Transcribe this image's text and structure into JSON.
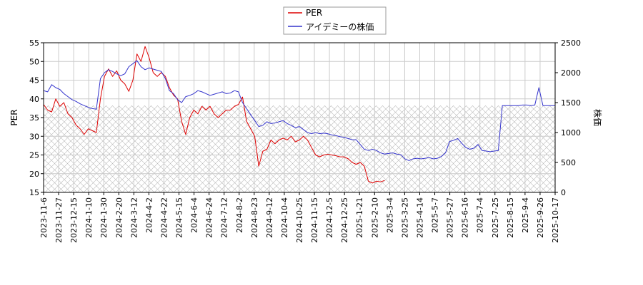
{
  "chart_data": {
    "type": "line",
    "ylabel_left": "PER",
    "ylabel_right": "株価",
    "ylim_left": [
      15,
      55
    ],
    "ylim_right": [
      0,
      2500
    ],
    "yticks_left": [
      "15",
      "20",
      "25",
      "30",
      "35",
      "40",
      "45",
      "50",
      "55"
    ],
    "yticks_right": [
      "0",
      "500",
      "1000",
      "1500",
      "2000",
      "2500"
    ],
    "x_ticks": [
      "2023-11-6",
      "2023-11-27",
      "2023-12-15",
      "2024-1-10",
      "2024-1-30",
      "2024-2-20",
      "2024-3-12",
      "2024-4-2",
      "2024-4-22",
      "2024-5-15",
      "2024-6-4",
      "2024-6-24",
      "2024-7-12",
      "2024-8-2",
      "2024-8-23",
      "2024-9-12",
      "2024-10-4",
      "2024-10-25",
      "2024-11-15",
      "2024-12-5",
      "2024-12-25",
      "2025-1-21",
      "2025-2-10",
      "2025-3-4",
      "2025-3-25",
      "2025-4-14",
      "2025-5-7",
      "2025-5-27",
      "2025-6-16",
      "2025-7-4",
      "2025-7-25",
      "2025-8-15",
      "2025-9-4",
      "2025-9-26",
      "2025-10-17"
    ],
    "grid": true,
    "hatch_band_right": [
      0,
      1450
    ],
    "legend_placement": "top-center",
    "series": [
      {
        "name": "PER",
        "axis": "left",
        "color": "#dd0000",
        "points": [
          [
            0,
            38.5
          ],
          [
            1,
            37
          ],
          [
            2,
            36.5
          ],
          [
            3,
            40
          ],
          [
            4,
            38
          ],
          [
            5,
            39
          ],
          [
            6,
            36
          ],
          [
            7,
            35
          ],
          [
            8,
            33
          ],
          [
            9,
            32
          ],
          [
            10,
            30.5
          ],
          [
            11,
            32
          ],
          [
            12,
            31.5
          ],
          [
            13,
            31
          ],
          [
            14,
            40
          ],
          [
            15,
            46
          ],
          [
            16,
            48
          ],
          [
            17,
            46
          ],
          [
            18,
            47.5
          ],
          [
            19,
            45
          ],
          [
            20,
            44
          ],
          [
            21,
            42
          ],
          [
            22,
            45
          ],
          [
            23,
            52
          ],
          [
            24,
            50
          ],
          [
            25,
            54
          ],
          [
            26,
            51
          ],
          [
            27,
            47
          ],
          [
            28,
            46
          ],
          [
            29,
            47
          ],
          [
            30,
            46
          ],
          [
            31,
            43
          ],
          [
            32,
            41
          ],
          [
            33,
            40
          ],
          [
            34,
            34
          ],
          [
            35,
            30.5
          ],
          [
            36,
            35
          ],
          [
            37,
            37
          ],
          [
            38,
            36
          ],
          [
            39,
            38
          ],
          [
            40,
            37
          ],
          [
            41,
            38
          ],
          [
            42,
            36
          ],
          [
            43,
            35
          ],
          [
            44,
            36
          ],
          [
            45,
            37
          ],
          [
            46,
            37
          ],
          [
            47,
            38
          ],
          [
            48,
            38.5
          ],
          [
            49,
            40.5
          ],
          [
            50,
            34
          ],
          [
            51,
            32
          ],
          [
            52,
            30
          ],
          [
            53,
            22
          ],
          [
            54,
            26
          ],
          [
            55,
            26.5
          ],
          [
            56,
            29
          ],
          [
            57,
            28
          ],
          [
            58,
            29
          ],
          [
            59,
            29.5
          ],
          [
            60,
            29
          ],
          [
            61,
            30
          ],
          [
            62,
            28.5
          ],
          [
            63,
            29
          ],
          [
            64,
            30
          ],
          [
            65,
            29
          ],
          [
            66,
            27
          ],
          [
            67,
            25
          ],
          [
            68,
            24.5
          ],
          [
            69,
            25
          ],
          [
            70,
            25.2
          ],
          [
            71,
            25
          ],
          [
            72,
            24.8
          ],
          [
            73,
            24.5
          ],
          [
            74,
            24.5
          ],
          [
            75,
            24
          ],
          [
            76,
            23
          ],
          [
            77,
            22.5
          ],
          [
            78,
            23
          ],
          [
            79,
            22
          ],
          [
            80,
            18
          ],
          [
            81,
            17.5
          ],
          [
            82,
            18
          ],
          [
            83,
            17.8
          ],
          [
            84,
            18.2
          ]
        ]
      },
      {
        "name": "アイデミーの株価",
        "axis": "right",
        "color": "#3333cc",
        "points": [
          [
            0,
            1700
          ],
          [
            1,
            1680
          ],
          [
            2,
            1800
          ],
          [
            3,
            1750
          ],
          [
            4,
            1720
          ],
          [
            5,
            1650
          ],
          [
            6,
            1600
          ],
          [
            7,
            1550
          ],
          [
            8,
            1520
          ],
          [
            9,
            1480
          ],
          [
            10,
            1450
          ],
          [
            11,
            1420
          ],
          [
            12,
            1400
          ],
          [
            13,
            1390
          ],
          [
            14,
            1900
          ],
          [
            15,
            2000
          ],
          [
            16,
            2050
          ],
          [
            17,
            2020
          ],
          [
            18,
            1980
          ],
          [
            19,
            1950
          ],
          [
            20,
            1980
          ],
          [
            21,
            2100
          ],
          [
            22,
            2150
          ],
          [
            23,
            2200
          ],
          [
            24,
            2100
          ],
          [
            25,
            2050
          ],
          [
            26,
            2080
          ],
          [
            27,
            2060
          ],
          [
            28,
            2040
          ],
          [
            29,
            2020
          ],
          [
            30,
            1900
          ],
          [
            31,
            1700
          ],
          [
            32,
            1650
          ],
          [
            33,
            1550
          ],
          [
            34,
            1500
          ],
          [
            35,
            1600
          ],
          [
            36,
            1620
          ],
          [
            37,
            1650
          ],
          [
            38,
            1700
          ],
          [
            39,
            1680
          ],
          [
            40,
            1650
          ],
          [
            41,
            1620
          ],
          [
            42,
            1640
          ],
          [
            43,
            1660
          ],
          [
            44,
            1680
          ],
          [
            45,
            1650
          ],
          [
            46,
            1660
          ],
          [
            47,
            1700
          ],
          [
            48,
            1680
          ],
          [
            49,
            1500
          ],
          [
            50,
            1400
          ],
          [
            51,
            1300
          ],
          [
            52,
            1200
          ],
          [
            53,
            1100
          ],
          [
            54,
            1120
          ],
          [
            55,
            1180
          ],
          [
            56,
            1150
          ],
          [
            57,
            1160
          ],
          [
            58,
            1180
          ],
          [
            59,
            1200
          ],
          [
            60,
            1150
          ],
          [
            61,
            1120
          ],
          [
            62,
            1080
          ],
          [
            63,
            1100
          ],
          [
            64,
            1050
          ],
          [
            65,
            1000
          ],
          [
            66,
            980
          ],
          [
            67,
            1000
          ],
          [
            68,
            980
          ],
          [
            69,
            990
          ],
          [
            70,
            980
          ],
          [
            71,
            960
          ],
          [
            72,
            950
          ],
          [
            73,
            930
          ],
          [
            74,
            920
          ],
          [
            75,
            900
          ],
          [
            76,
            880
          ],
          [
            77,
            880
          ],
          [
            78,
            800
          ],
          [
            79,
            720
          ],
          [
            80,
            700
          ],
          [
            81,
            720
          ],
          [
            82,
            700
          ],
          [
            83,
            660
          ],
          [
            84,
            640
          ],
          [
            85,
            650
          ],
          [
            86,
            660
          ],
          [
            87,
            640
          ],
          [
            88,
            630
          ],
          [
            89,
            560
          ],
          [
            90,
            530
          ],
          [
            91,
            560
          ],
          [
            92,
            570
          ],
          [
            93,
            560
          ],
          [
            94,
            570
          ],
          [
            95,
            580
          ],
          [
            96,
            560
          ],
          [
            97,
            570
          ],
          [
            98,
            600
          ],
          [
            99,
            660
          ],
          [
            100,
            850
          ],
          [
            101,
            870
          ],
          [
            102,
            900
          ],
          [
            103,
            820
          ],
          [
            104,
            750
          ],
          [
            105,
            720
          ],
          [
            106,
            740
          ],
          [
            107,
            800
          ],
          [
            108,
            700
          ],
          [
            109,
            690
          ],
          [
            110,
            680
          ],
          [
            111,
            690
          ],
          [
            112,
            700
          ],
          [
            113,
            1450
          ],
          [
            114,
            1450
          ],
          [
            115,
            1450
          ],
          [
            116,
            1450
          ],
          [
            117,
            1450
          ],
          [
            118,
            1460
          ],
          [
            119,
            1460
          ],
          [
            120,
            1450
          ],
          [
            121,
            1460
          ],
          [
            122,
            1750
          ],
          [
            123,
            1450
          ],
          [
            124,
            1450
          ],
          [
            125,
            1450
          ],
          [
            126,
            1450
          ]
        ]
      }
    ]
  }
}
